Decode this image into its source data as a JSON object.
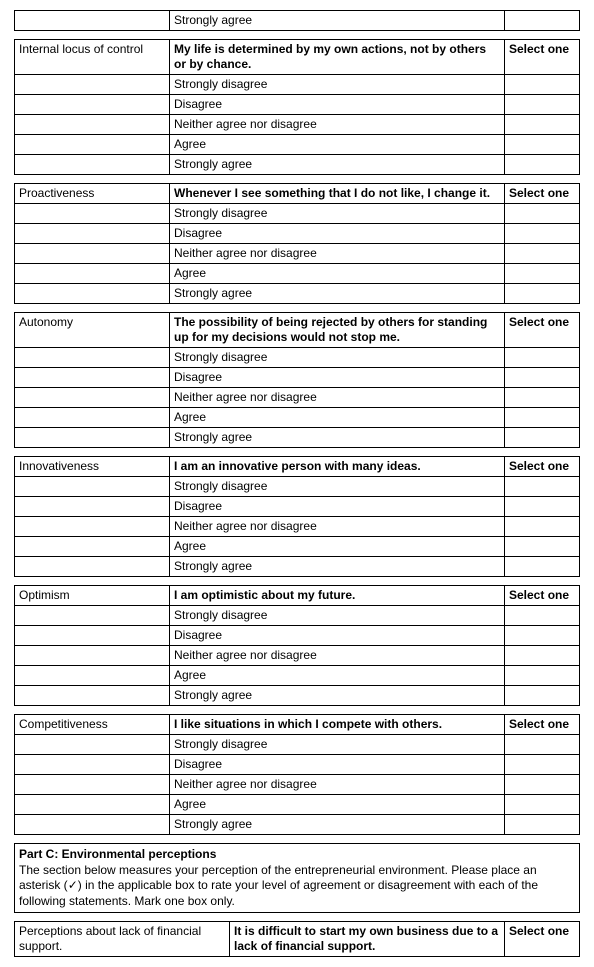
{
  "options": {
    "strongly_disagree": "Strongly disagree",
    "disagree": "Disagree",
    "neither": "Neither agree nor disagree",
    "agree": "Agree",
    "strongly_agree": "Strongly agree"
  },
  "select_one": "Select one",
  "top_row": {
    "label": "Strongly agree"
  },
  "q_internal": {
    "label": "Internal locus of control",
    "statement": "My life is determined by my own actions, not by others or by chance."
  },
  "q_proactive": {
    "label": "Proactiveness",
    "statement": "Whenever I see something that I do not like, I change it."
  },
  "q_autonomy": {
    "label": "Autonomy",
    "statement": "The possibility of being rejected by others for standing up for my decisions would not stop me."
  },
  "q_innov": {
    "label": "Innovativeness",
    "statement": "I am an innovative person with many ideas."
  },
  "q_optimism": {
    "label": "Optimism",
    "statement": "I am optimistic about my future."
  },
  "q_compet": {
    "label": "Competitiveness",
    "statement": "I like situations in which I compete with others."
  },
  "part_c": {
    "heading": "Part C: Environmental perceptions",
    "text_a": "The section below measures your perception of the entrepreneurial environment. Please place an asterisk (",
    "check": "✓",
    "text_b": ") in the applicable box to rate your level of agreement or disagreement with each of the following statements. Mark one box only."
  },
  "q_finance": {
    "label": "Perceptions about lack of financial support.",
    "statement": "It is difficult to start my own business due to a lack of financial support."
  }
}
